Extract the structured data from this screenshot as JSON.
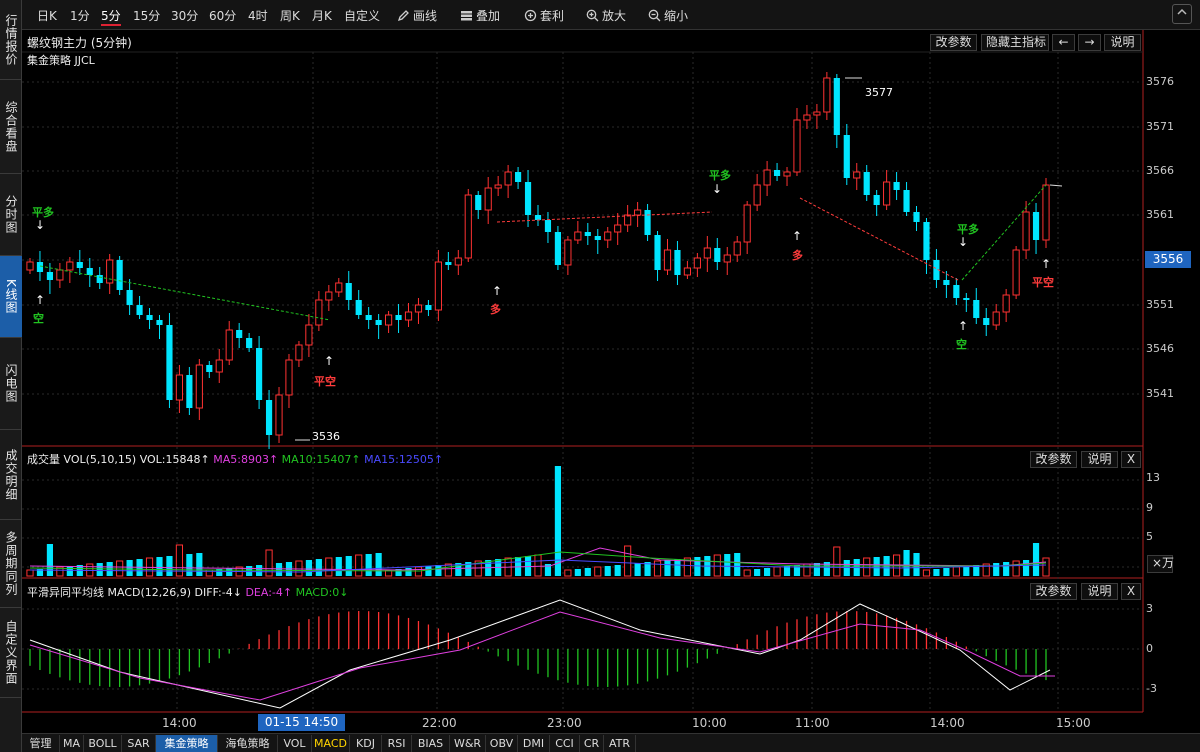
{
  "nav": [
    {
      "label": "行情报价",
      "active": false
    },
    {
      "label": "综合看盘",
      "active": false
    },
    {
      "label": "分时图",
      "active": false
    },
    {
      "label": "K线图",
      "active": true
    },
    {
      "label": "闪电图",
      "active": false
    },
    {
      "label": "成交明细",
      "active": false
    },
    {
      "label": "多周期同列",
      "active": false
    },
    {
      "label": "自定义界面",
      "active": false
    }
  ],
  "toolbar": {
    "periods": [
      "日K",
      "1分",
      "5分",
      "15分",
      "30分",
      "60分",
      "4时",
      "周K",
      "月K",
      "自定义"
    ],
    "active_period": "5分",
    "draw": "画线",
    "overlay": "叠加",
    "arbitrage": "套利",
    "zoom_in": "放大",
    "zoom_out": "缩小",
    "icons": [
      "pencil-icon",
      "layers-icon",
      "arbitrage-icon",
      "zoom-in-icon",
      "zoom-out-icon",
      "chevron-up-icon"
    ]
  },
  "main_panel": {
    "title": "螺纹钢主力 (5分钟)",
    "strategy": "集金策略 JJCL",
    "btn_params": "改参数",
    "btn_hide": "隐藏主指标",
    "btn_left": "←",
    "btn_right": "→",
    "btn_help": "说明",
    "price_labels": [
      "3576",
      "3571",
      "3566",
      "3561",
      "3551",
      "3546",
      "3541"
    ],
    "current_price": "3556",
    "high_label": "3577",
    "low_label": "3536",
    "signals": [
      {
        "text": "平多",
        "color": "g"
      },
      {
        "text": "空",
        "color": "g"
      },
      {
        "text": "平空",
        "color": "r"
      },
      {
        "text": "多",
        "color": "r"
      },
      {
        "text": "平多",
        "color": "g"
      },
      {
        "text": "多",
        "color": "r"
      },
      {
        "text": "平多",
        "color": "g"
      },
      {
        "text": "空",
        "color": "g"
      },
      {
        "text": "平空",
        "color": "r"
      }
    ]
  },
  "vol_panel": {
    "title": "成交量 VOL(5,10,15)",
    "vol": "VOL:15848↑",
    "ma5": "MA5:8903↑",
    "ma10": "MA10:15407↑",
    "ma15": "MA15:12505↑",
    "btn_params": "改参数",
    "btn_help": "说明",
    "btn_close": "X",
    "axis": [
      "13",
      "9",
      "5"
    ],
    "unit": "×万",
    "colors": {
      "ma5": "#e040e0",
      "ma10": "#21c321",
      "ma15": "#3a3aff"
    }
  },
  "macd_panel": {
    "title": "平滑异同平均线 MACD(12,26,9)",
    "diff": "DIFF:-4↓",
    "dea": "DEA:-4↑",
    "macd": "MACD:0↓",
    "btn_params": "改参数",
    "btn_help": "说明",
    "btn_close": "X",
    "axis": [
      "3",
      "0",
      "-3"
    ],
    "colors": {
      "diff": "#ffffff",
      "dea": "#e040e0",
      "macd": "#21c321"
    }
  },
  "time_axis": {
    "labels": [
      "14:00",
      "22:00",
      "23:00",
      "10:00",
      "11:00",
      "14:00",
      "15:00"
    ],
    "cursor": "01-15 14:50"
  },
  "bottom_tabs": [
    "管理",
    "MA",
    "BOLL",
    "SAR",
    "集金策略",
    "海龟策略",
    "VOL",
    "MACD",
    "KDJ",
    "RSI",
    "BIAS",
    "W&R",
    "OBV",
    "DMI",
    "CCI",
    "CR",
    "ATR"
  ],
  "bottom_active": "集金策略",
  "colors": {
    "up": "#ff3232",
    "down": "#00e5ff",
    "accent": "#1c5ea8"
  }
}
